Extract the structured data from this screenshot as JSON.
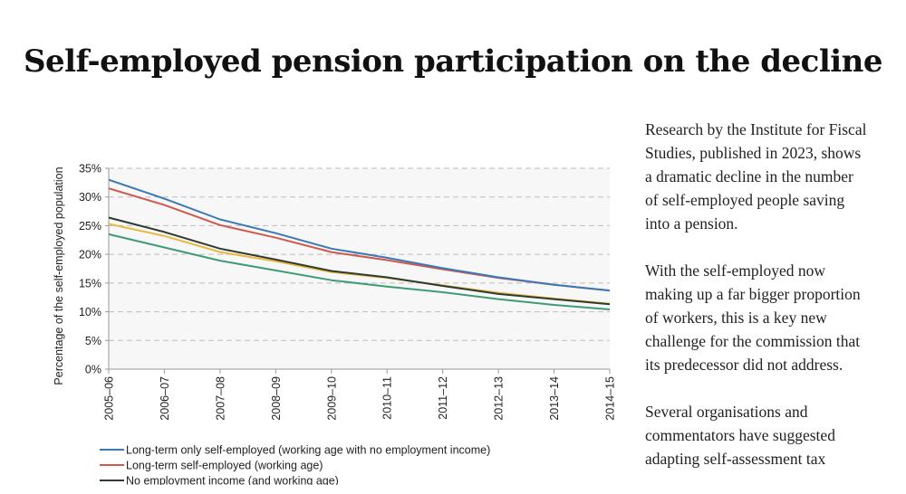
{
  "page": {
    "title": "Self-employed pension participation on the decline"
  },
  "article": {
    "paragraphs": [
      "Research by the Institute for Fiscal Studies, published in 2023, shows a dramatic decline in the number of self-employed people saving into a pension.",
      "With the self-employed now making up a far bigger proportion of workers, this is a key new challenge for the commission that its predecessor did not address.",
      "Several organisations and commentators have suggested adapting self-assessment tax"
    ]
  },
  "chart_data": {
    "type": "line",
    "title": "",
    "xlabel": "",
    "ylabel": "Percentage of the self-employed population",
    "categories": [
      "2005–06",
      "2006–07",
      "2007–08",
      "2008–09",
      "2009–10",
      "2010–11",
      "2011–12",
      "2012–13",
      "2013–14",
      "2014–15"
    ],
    "ylim": [
      0,
      35
    ],
    "yticks": [
      0,
      5,
      10,
      15,
      20,
      25,
      30,
      35
    ],
    "ytick_labels": [
      "0%",
      "5%",
      "10%",
      "15%",
      "20%",
      "25%",
      "30%",
      "35%"
    ],
    "grid": "horizontal dashed",
    "legend_position": "bottom",
    "series": [
      {
        "name": "Long-term only self-employed (working age with no employment income)",
        "color": "#3b78b5",
        "values": [
          33.0,
          29.7,
          26.1,
          23.7,
          21.0,
          19.4,
          17.6,
          16.0,
          14.7,
          13.7
        ]
      },
      {
        "name": "Long-term self-employed (working age)",
        "color": "#d1584c",
        "values": [
          31.5,
          28.6,
          25.1,
          22.9,
          20.4,
          19.0,
          17.4,
          15.9,
          14.7,
          13.7
        ]
      },
      {
        "name": "No employment income (and working age)",
        "color": "#2e3a32",
        "values": [
          26.4,
          23.9,
          21.0,
          19.1,
          17.1,
          16.0,
          14.5,
          13.1,
          12.2,
          11.3
        ]
      },
      {
        "name": "",
        "color": "#e8b83a",
        "values": [
          25.3,
          23.2,
          20.4,
          18.8,
          16.9,
          15.9,
          14.6,
          13.3,
          12.3,
          11.4
        ]
      },
      {
        "name": "",
        "color": "#3f9b76",
        "values": [
          23.5,
          21.2,
          18.9,
          17.2,
          15.5,
          14.4,
          13.4,
          12.2,
          11.2,
          10.4
        ]
      }
    ]
  }
}
